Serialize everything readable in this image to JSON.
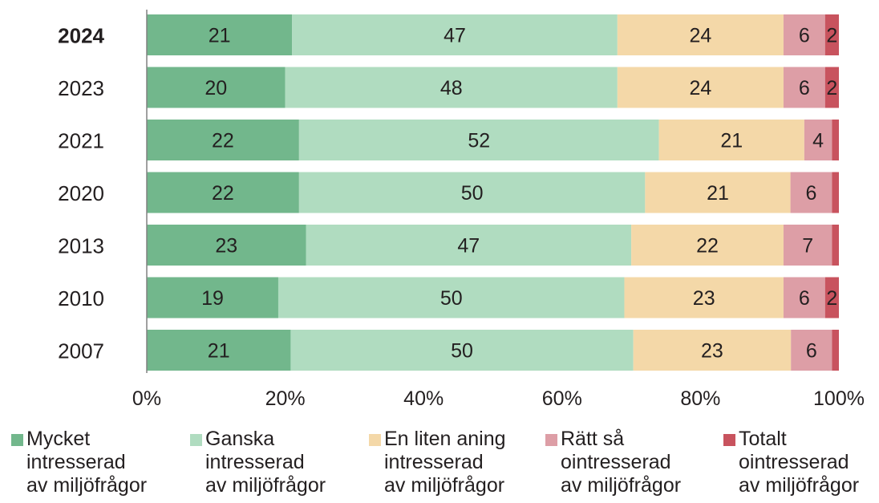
{
  "chart_data": {
    "type": "bar",
    "orientation": "horizontal",
    "stacked": true,
    "categories": [
      "2024",
      "2023",
      "2021",
      "2020",
      "2013",
      "2010",
      "2007"
    ],
    "highlighted_category": "2024",
    "series": [
      {
        "name": "Mycket\nintresserad\nav miljöfrågor",
        "color": "#72b78c",
        "values": [
          21,
          20,
          22,
          22,
          23,
          19,
          21
        ],
        "labels": [
          "21",
          "20",
          "22",
          "22",
          "23",
          "19",
          "21"
        ]
      },
      {
        "name": "Ganska\nintresserad\nav miljöfrågor",
        "color": "#b0dcc0",
        "values": [
          47,
          48,
          52,
          50,
          47,
          50,
          50
        ],
        "labels": [
          "47",
          "48",
          "52",
          "50",
          "47",
          "50",
          "50"
        ]
      },
      {
        "name": "En liten aning\nintresserad\nav miljöfrågor",
        "color": "#f4d8a8",
        "values": [
          24,
          24,
          21,
          21,
          22,
          23,
          23
        ],
        "labels": [
          "24",
          "24",
          "21",
          "21",
          "22",
          "23",
          "23"
        ]
      },
      {
        "name": "Rätt så\nointresserad\nav miljöfrågor",
        "color": "#dd9ea6",
        "values": [
          6,
          6,
          4,
          6,
          7,
          6,
          6
        ],
        "labels": [
          "6",
          "6",
          "4",
          "6",
          "7",
          "6",
          "6"
        ]
      },
      {
        "name": "Totalt\nointresserad\nav miljöfrågor",
        "color": "#c8535e",
        "values": [
          2,
          2,
          1,
          1,
          1,
          2,
          1
        ],
        "labels": [
          "2",
          "2",
          "",
          "",
          "",
          "2",
          ""
        ]
      }
    ],
    "x_ticks": [
      "0%",
      "20%",
      "40%",
      "60%",
      "80%",
      "100%"
    ],
    "xlim": [
      0,
      100
    ],
    "grid": false,
    "legend_position": "bottom",
    "title": "",
    "xlabel": "",
    "ylabel": ""
  }
}
